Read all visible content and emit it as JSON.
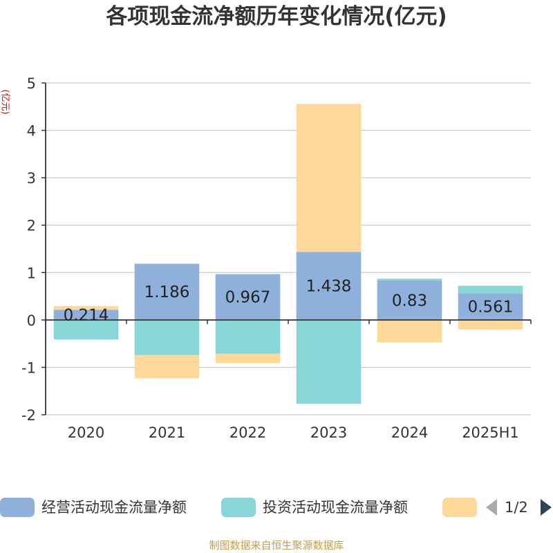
{
  "title": "各项现金流净额历年变化情况(亿元)",
  "y_unit": "(亿元)",
  "source": "制图数据来自恒生聚源数据库",
  "legend": {
    "page_label": "1/2",
    "items": [
      {
        "name": "经营活动现金流量净额",
        "color": "#8eb0db"
      },
      {
        "name": "投资活动现金流量净额",
        "color": "#88d6d8"
      },
      {
        "name": "",
        "color": "#fdd898"
      }
    ]
  },
  "chart_data": {
    "type": "bar",
    "stacked": true,
    "categories": [
      "2020",
      "2021",
      "2022",
      "2023",
      "2024",
      "2025H1"
    ],
    "series": [
      {
        "name": "经营活动现金流量净额",
        "color": "#8eb0db",
        "values": [
          0.214,
          1.186,
          0.967,
          1.438,
          0.83,
          0.561
        ],
        "labels": [
          "0.214",
          "1.186",
          "0.967",
          "1.438",
          "0.83",
          "0.561"
        ]
      },
      {
        "name": "投资活动现金流量净额",
        "color": "#88d6d8",
        "values": [
          -0.41,
          -0.74,
          -0.71,
          -1.77,
          0.04,
          0.16
        ]
      },
      {
        "color": "#fdd898",
        "values": [
          0.08,
          -0.49,
          -0.2,
          3.12,
          -0.47,
          -0.2
        ]
      }
    ],
    "ylim": [
      -2,
      5
    ],
    "yticks": [
      -2,
      -1,
      0,
      1,
      2,
      3,
      4,
      5
    ],
    "grid": true,
    "legend_position": "bottom"
  }
}
